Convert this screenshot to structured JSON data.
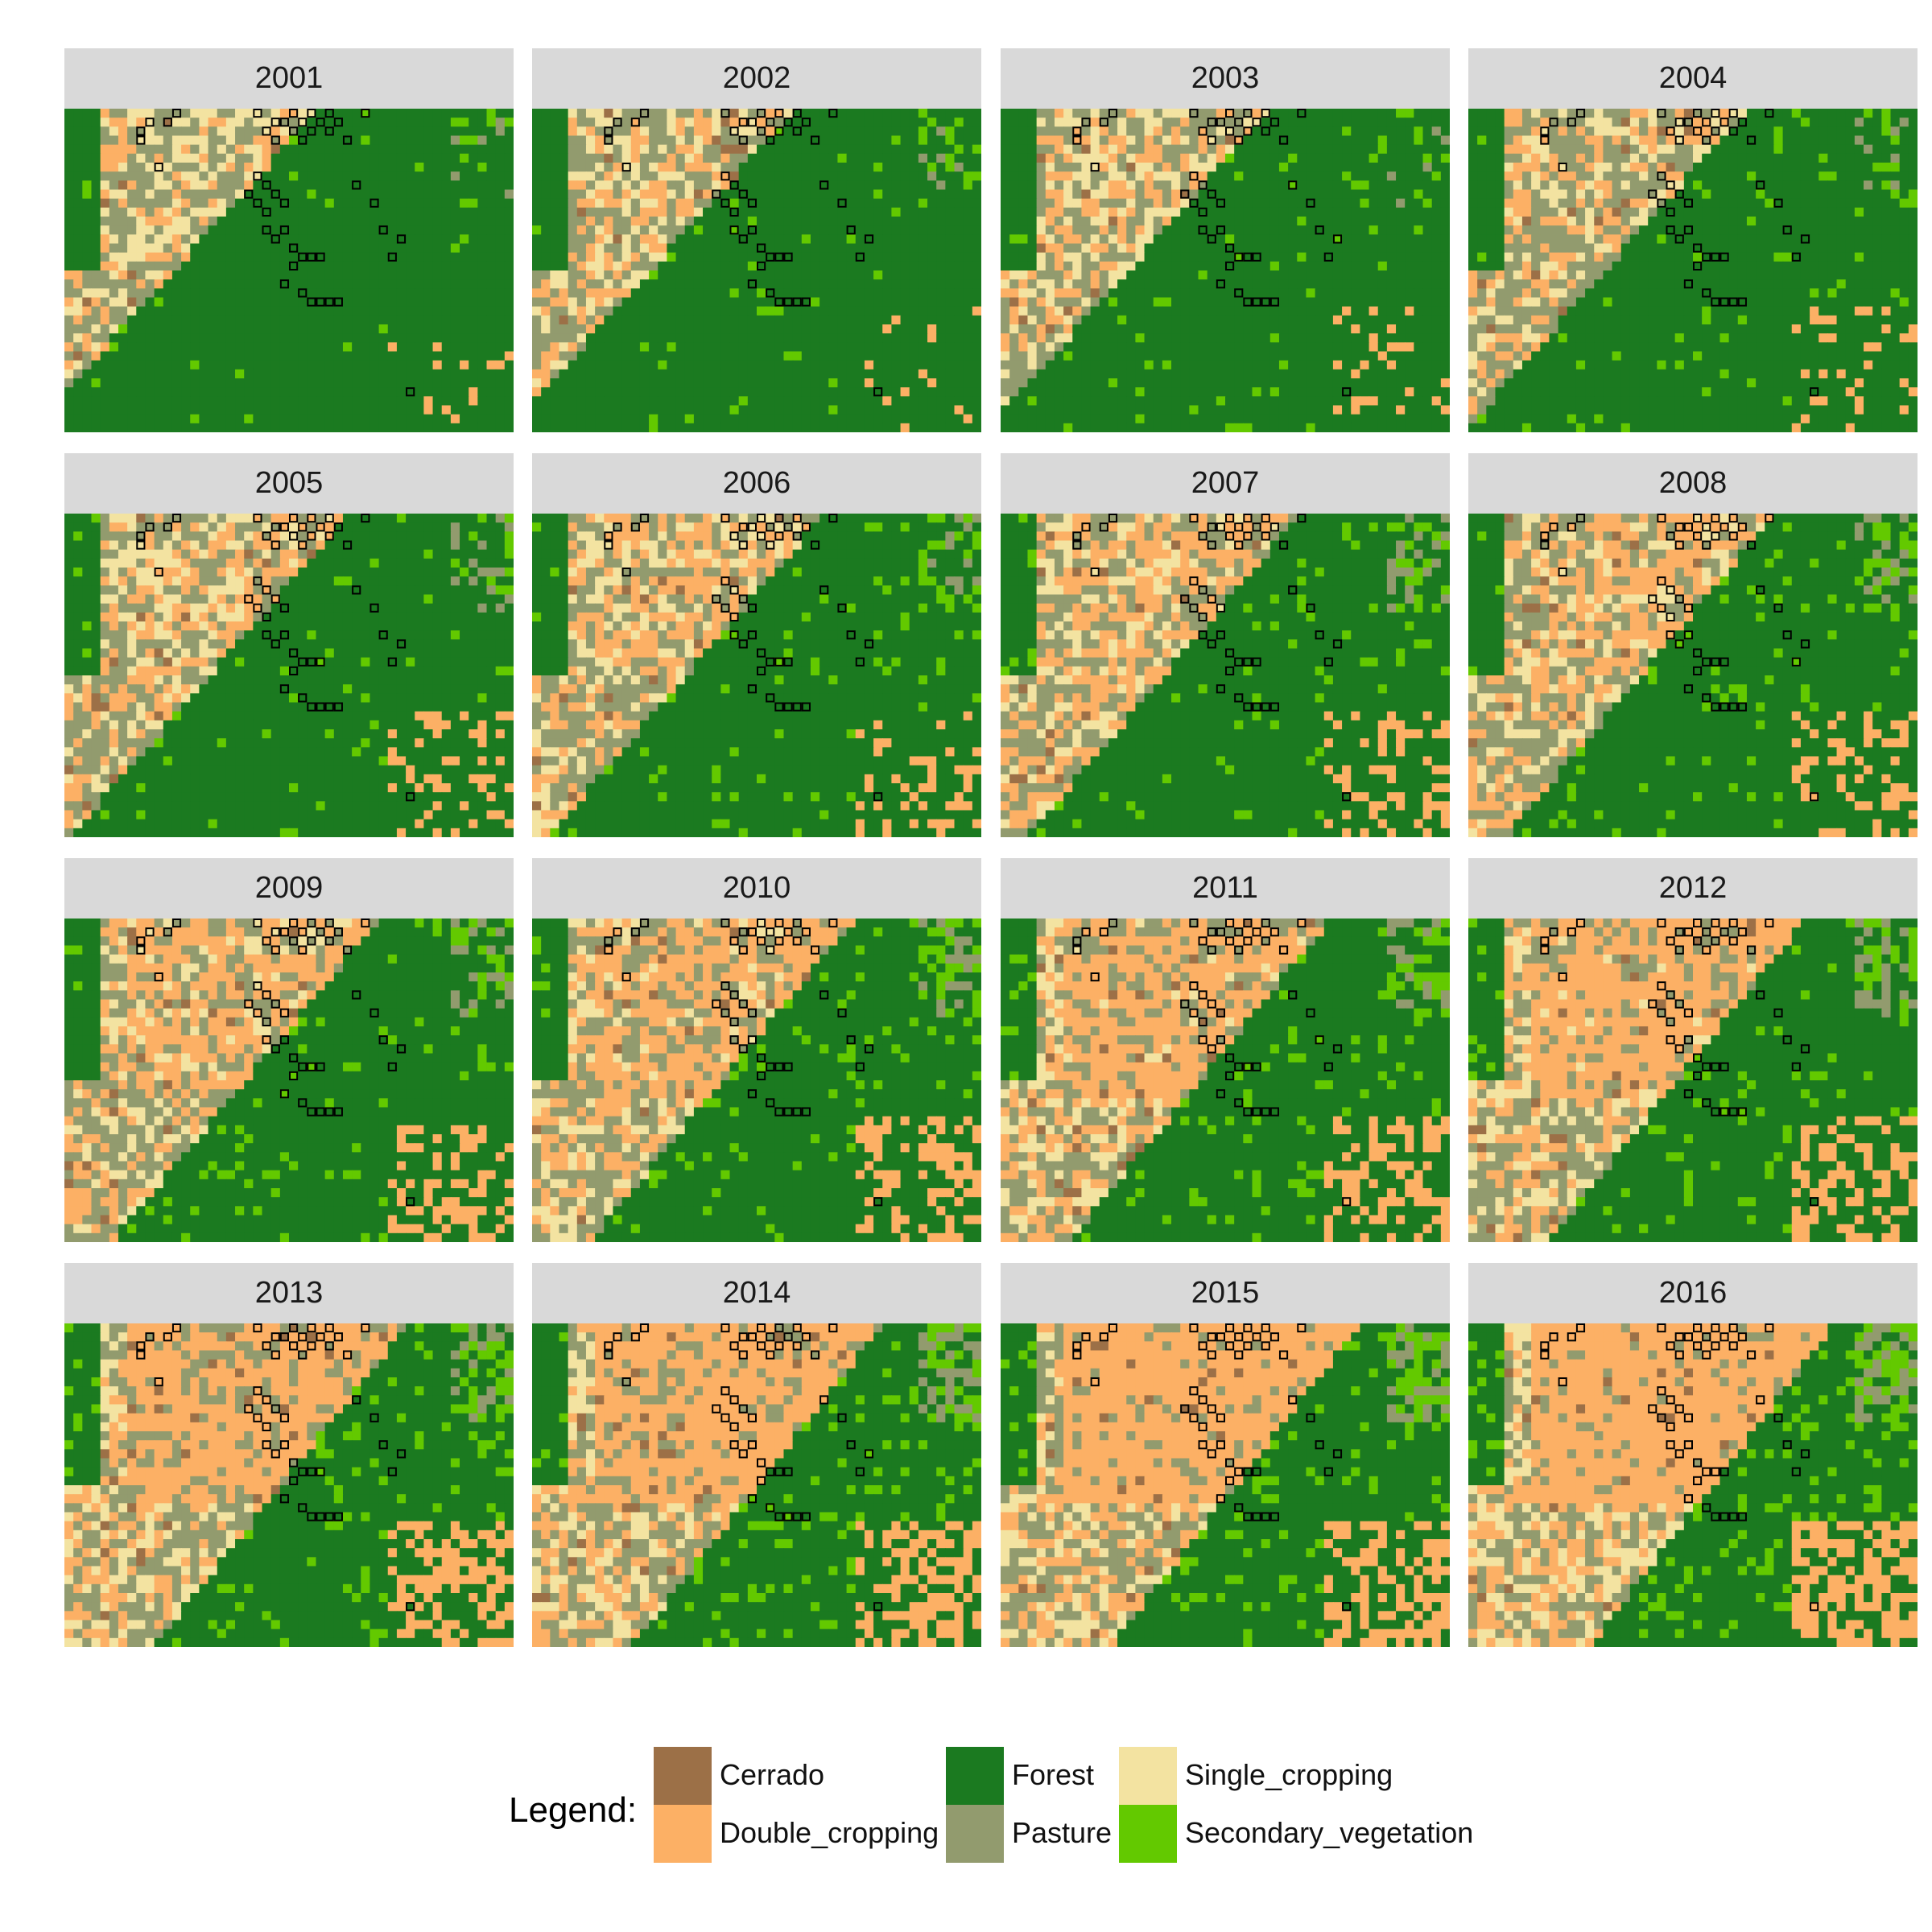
{
  "legend": {
    "title": "Legend:",
    "classes": [
      {
        "name": "Cerrado",
        "color": "#9c7047"
      },
      {
        "name": "Double_cropping",
        "color": "#fcb065"
      },
      {
        "name": "Forest",
        "color": "#1b7a20"
      },
      {
        "name": "Pasture",
        "color": "#929b6e"
      },
      {
        "name": "Single_cropping",
        "color": "#f3e3a1"
      },
      {
        "name": "Secondary_vegetation",
        "color": "#63c900"
      }
    ]
  },
  "panels": [
    {
      "year": "2001"
    },
    {
      "year": "2002"
    },
    {
      "year": "2003"
    },
    {
      "year": "2004"
    },
    {
      "year": "2005"
    },
    {
      "year": "2006"
    },
    {
      "year": "2007"
    },
    {
      "year": "2008"
    },
    {
      "year": "2009"
    },
    {
      "year": "2010"
    },
    {
      "year": "2011"
    },
    {
      "year": "2012"
    },
    {
      "year": "2013"
    },
    {
      "year": "2014"
    },
    {
      "year": "2015"
    },
    {
      "year": "2016"
    }
  ],
  "sample_points_note_icon": "square-marker-icon"
}
